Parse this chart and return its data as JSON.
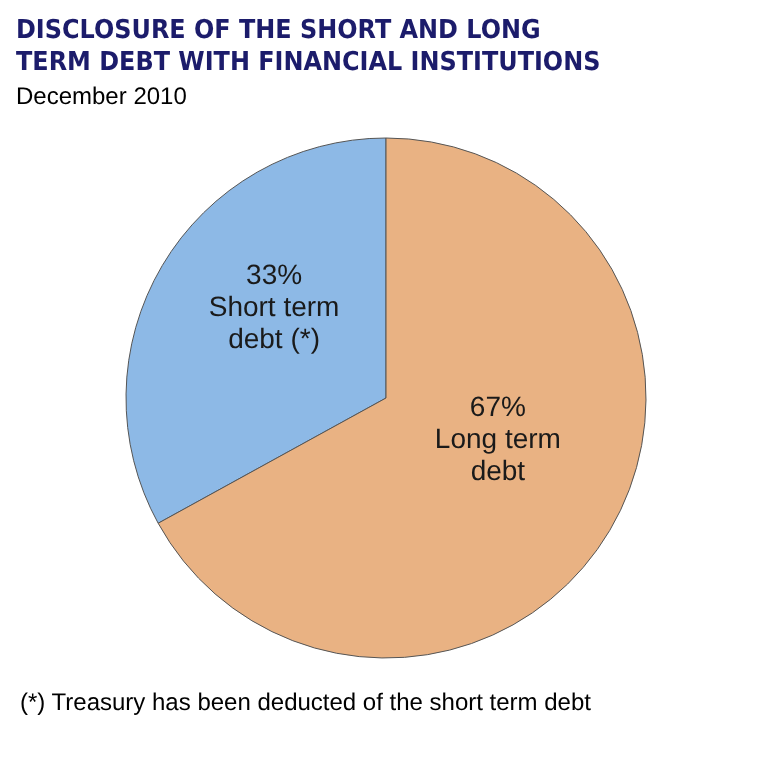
{
  "chart_data": {
    "type": "pie",
    "title": "DISCLOSURE OF THE SHORT AND LONG TERM DEBT WITH  FINANCIAL INSTITUTIONS",
    "subtitle": "December 2010",
    "categories": [
      "Short term debt (*)",
      "Long term debt"
    ],
    "values": [
      33,
      67
    ],
    "colors": [
      "#8db9e6",
      "#e9b283"
    ],
    "value_labels": [
      "33%",
      "67%"
    ],
    "annotations": [
      "(*) Treasury has been deducted of the short term debt"
    ]
  }
}
